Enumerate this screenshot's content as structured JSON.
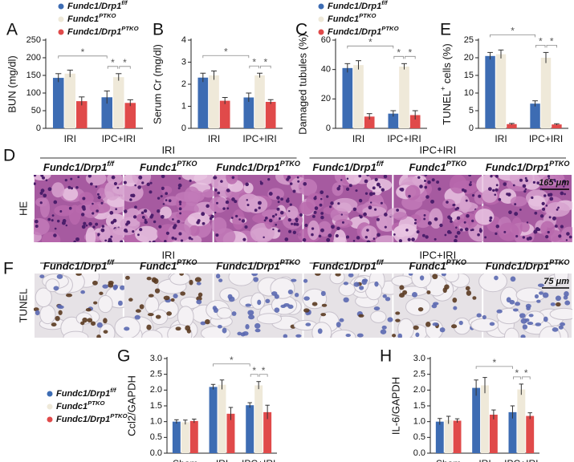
{
  "chart_data": [
    {
      "type": "bar",
      "label": "A",
      "ylabel": "BUN (mg/dl)",
      "categories": [
        "IRI",
        "IPC+IRI"
      ],
      "ylim": [
        0,
        250
      ],
      "yticks": [
        0,
        50,
        100,
        150,
        200,
        250
      ],
      "legend": "top",
      "series": [
        {
          "name": [
            {
              "text": "Fundc1/Drp1"
            },
            {
              "sup": "f/f"
            }
          ],
          "color": "#3d6cb3",
          "values": [
            143,
            88
          ],
          "errors": [
            12,
            18
          ]
        },
        {
          "name": [
            {
              "text": "Fundc1"
            },
            {
              "sup": "PTKO"
            }
          ],
          "color": "#efe9d9",
          "values": [
            155,
            145
          ],
          "errors": [
            10,
            10
          ]
        },
        {
          "name": [
            {
              "text": "Fundc1/Drp1"
            },
            {
              "sup": "PTKO"
            }
          ],
          "color": "#e04a4a",
          "values": [
            77,
            72
          ],
          "errors": [
            12,
            9
          ]
        }
      ],
      "significance": [
        "*",
        "*",
        "*"
      ]
    },
    {
      "type": "bar",
      "label": "B",
      "ylabel": "Serum Cr (mg/dl)",
      "categories": [
        "IRI",
        "IPC+IRI"
      ],
      "ylim": [
        0,
        4
      ],
      "yticks": [
        0,
        1,
        2,
        3,
        4
      ],
      "series": [
        {
          "color": "#3d6cb3",
          "values": [
            2.3,
            1.4
          ],
          "errors": [
            0.2,
            0.2
          ]
        },
        {
          "color": "#efe9d9",
          "values": [
            2.4,
            2.4
          ],
          "errors": [
            0.2,
            0.1
          ]
        },
        {
          "color": "#e04a4a",
          "values": [
            1.25,
            1.2
          ],
          "errors": [
            0.15,
            0.1
          ]
        }
      ],
      "significance": [
        "*",
        "*",
        "*"
      ]
    },
    {
      "type": "bar",
      "label": "C",
      "ylabel": "Damaged tubules (%)",
      "categories": [
        "IRI",
        "IPC+IRI"
      ],
      "ylim": [
        0,
        60
      ],
      "yticks": [
        0,
        20,
        40,
        60
      ],
      "legend": "top",
      "series": [
        {
          "name": [
            {
              "text": "Fundc1/Drp1"
            },
            {
              "sup": "f/f"
            }
          ],
          "color": "#3d6cb3",
          "values": [
            41,
            10
          ],
          "errors": [
            3,
            2
          ]
        },
        {
          "name": [
            {
              "text": "Fundc1"
            },
            {
              "sup": "PTKO"
            }
          ],
          "color": "#efe9d9",
          "values": [
            43,
            42
          ],
          "errors": [
            3,
            2
          ]
        },
        {
          "name": [
            {
              "text": "Fundc1/Drp1"
            },
            {
              "sup": "PTKO"
            }
          ],
          "color": "#e04a4a",
          "values": [
            8,
            9
          ],
          "errors": [
            2,
            3
          ]
        }
      ],
      "significance": [
        "*",
        "*",
        "*"
      ]
    },
    {
      "type": "bar",
      "label": "E",
      "ylabel": [
        {
          "text": "TUNEL"
        },
        {
          "sup": "+"
        },
        {
          "text": " cells (%)"
        }
      ],
      "categories": [
        "IRI",
        "IPC+IRI"
      ],
      "ylim": [
        0,
        25
      ],
      "yticks": [
        0,
        5,
        10,
        15,
        20,
        25
      ],
      "series": [
        {
          "color": "#3d6cb3",
          "values": [
            20.5,
            7
          ],
          "errors": [
            1,
            0.8
          ]
        },
        {
          "color": "#efe9d9",
          "values": [
            21,
            20
          ],
          "errors": [
            1.2,
            1.5
          ]
        },
        {
          "color": "#e04a4a",
          "values": [
            1.2,
            1.1
          ],
          "errors": [
            0.2,
            0.2
          ]
        }
      ],
      "significance": [
        "*",
        "*",
        "*"
      ]
    },
    {
      "type": "bar",
      "label": "G",
      "ylabel": "Ccl2/GAPDH",
      "categories": [
        "Sham",
        "IRI",
        "IPC+IRI"
      ],
      "ylim": [
        0,
        3
      ],
      "yticks": [
        {
          "value": 0,
          "label": "0.0"
        },
        0.5,
        {
          "value": 1,
          "label": "1.0"
        },
        1.5,
        {
          "value": 2,
          "label": "2.0"
        },
        2.5,
        {
          "value": 3,
          "label": "3.0"
        }
      ],
      "legend": "left",
      "series": [
        {
          "name": [
            {
              "text": "Fundc1/Drp1"
            },
            {
              "sup": "f/f"
            }
          ],
          "color": "#3d6cb3",
          "values": [
            1.0,
            2.1,
            1.52
          ],
          "errors": [
            0.06,
            0.08,
            0.08
          ]
        },
        {
          "name": [
            {
              "text": "Fundc1"
            },
            {
              "sup": "PTKO"
            }
          ],
          "color": "#efe9d9",
          "values": [
            0.98,
            2.17,
            2.15
          ],
          "errors": [
            0.07,
            0.15,
            0.12
          ]
        },
        {
          "name": [
            {
              "text": "Fundc1/Drp1"
            },
            {
              "sup": "PTKO"
            }
          ],
          "color": "#e04a4a",
          "values": [
            1.02,
            1.25,
            1.3
          ],
          "errors": [
            0.06,
            0.2,
            0.22
          ]
        }
      ],
      "significance": [
        "*",
        "*",
        "*"
      ]
    },
    {
      "type": "bar",
      "label": "H",
      "ylabel": "IL-6/GAPDH",
      "categories": [
        "Sham",
        "IRI",
        "IPC+IRI"
      ],
      "ylim": [
        0,
        3
      ],
      "yticks": [
        {
          "value": 0,
          "label": "0.0"
        },
        0.5,
        {
          "value": 1,
          "label": "1.0"
        },
        1.5,
        {
          "value": 2,
          "label": "2.0"
        },
        2.5,
        {
          "value": 3,
          "label": "3.0"
        }
      ],
      "series": [
        {
          "color": "#3d6cb3",
          "values": [
            1.0,
            2.07,
            1.3
          ],
          "errors": [
            0.1,
            0.25,
            0.2
          ]
        },
        {
          "color": "#efe9d9",
          "values": [
            1.05,
            2.15,
            2.02
          ],
          "errors": [
            0.12,
            0.25,
            0.17
          ]
        },
        {
          "color": "#e04a4a",
          "values": [
            1.03,
            1.22,
            1.18
          ],
          "errors": [
            0.06,
            0.15,
            0.1
          ]
        }
      ],
      "significance": [
        "*",
        "*",
        "*"
      ]
    }
  ],
  "panels": [
    {
      "label": "D",
      "groups": [
        "IRI",
        "IPC+IRI"
      ],
      "row_label": "HE",
      "scale": "165 μm",
      "columns": [
        [
          {
            "text": "Fundc1/Drp1"
          },
          {
            "sup": "f/f"
          }
        ],
        [
          {
            "text": "Fundc1"
          },
          {
            "sup": "PTKO"
          }
        ],
        [
          {
            "text": "Fundc1/Drp1"
          },
          {
            "sup": "PTKO"
          }
        ],
        [
          {
            "text": "Fundc1/Drp1"
          },
          {
            "sup": "f/f"
          }
        ],
        [
          {
            "text": "Fundc1"
          },
          {
            "sup": "PTKO"
          }
        ],
        [
          {
            "text": "Fundc1/Drp1"
          },
          {
            "sup": "PTKO"
          }
        ]
      ]
    },
    {
      "label": "F",
      "groups": [
        "IRI",
        "IPC+IRI"
      ],
      "row_label": "TUNEL",
      "scale": "75 μm",
      "columns": [
        [
          {
            "text": "Fundc1/Drp1"
          },
          {
            "sup": "f/f"
          }
        ],
        [
          {
            "text": "Fundc1"
          },
          {
            "sup": "PTKO"
          }
        ],
        [
          {
            "text": "Fundc1/Drp1"
          },
          {
            "sup": "PTKO"
          }
        ],
        [
          {
            "text": "Fundc1/Drp1"
          },
          {
            "sup": "f/f"
          }
        ],
        [
          {
            "text": "Fundc1"
          },
          {
            "sup": "PTKO"
          }
        ],
        [
          {
            "text": "Fundc1/Drp1"
          },
          {
            "sup": "PTKO"
          }
        ]
      ]
    }
  ]
}
